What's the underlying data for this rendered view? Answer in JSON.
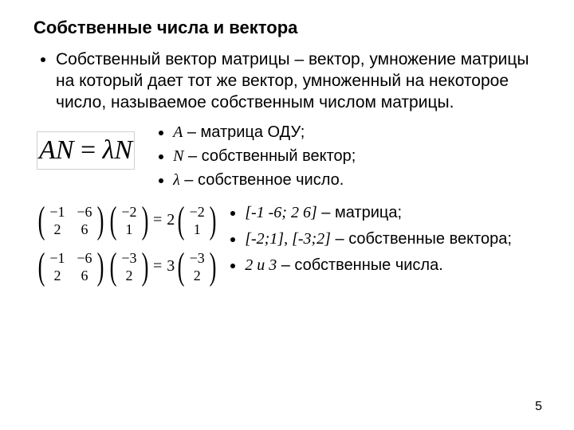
{
  "title": "Собственные числа и вектора",
  "definition": "Собственный вектор матрицы – вектор, умножение матрицы на который дает тот же вектор, умноженный на некоторое число, называемое собственным числом матрицы.",
  "formula": {
    "lhs_A": "A",
    "lhs_N": "N",
    "eq": " = ",
    "lambda": "λ",
    "rhs_N": "N"
  },
  "legend1": {
    "a": {
      "sym": "A",
      "txt": " – матрица ОДУ;"
    },
    "n": {
      "sym": "N",
      "txt": " – собственный вектор;"
    },
    "l": {
      "sym": "λ",
      "txt": " – собственное число."
    }
  },
  "eq1": {
    "M": [
      [
        "−1",
        "−6"
      ],
      [
        "2",
        "6"
      ]
    ],
    "v": [
      "−2",
      "1"
    ],
    "s": "2",
    "r": [
      "−2",
      "1"
    ]
  },
  "eq2": {
    "M": [
      [
        "−1",
        "−6"
      ],
      [
        "2",
        "6"
      ]
    ],
    "v": [
      "−3",
      "2"
    ],
    "s": "3",
    "r": [
      "−3",
      "2"
    ]
  },
  "legend2": {
    "m": {
      "sym": "[-1 -6; 2 6]",
      "txt": " – матрица;"
    },
    "v": {
      "sym": "[-2;1], [-3;2]",
      "txt": " – собственные вектора;"
    },
    "s": {
      "sym": "2 и 3",
      "txt": " – собственные числа."
    }
  },
  "pagenum": "5",
  "colors": {
    "text": "#000000",
    "bg": "#ffffff"
  }
}
